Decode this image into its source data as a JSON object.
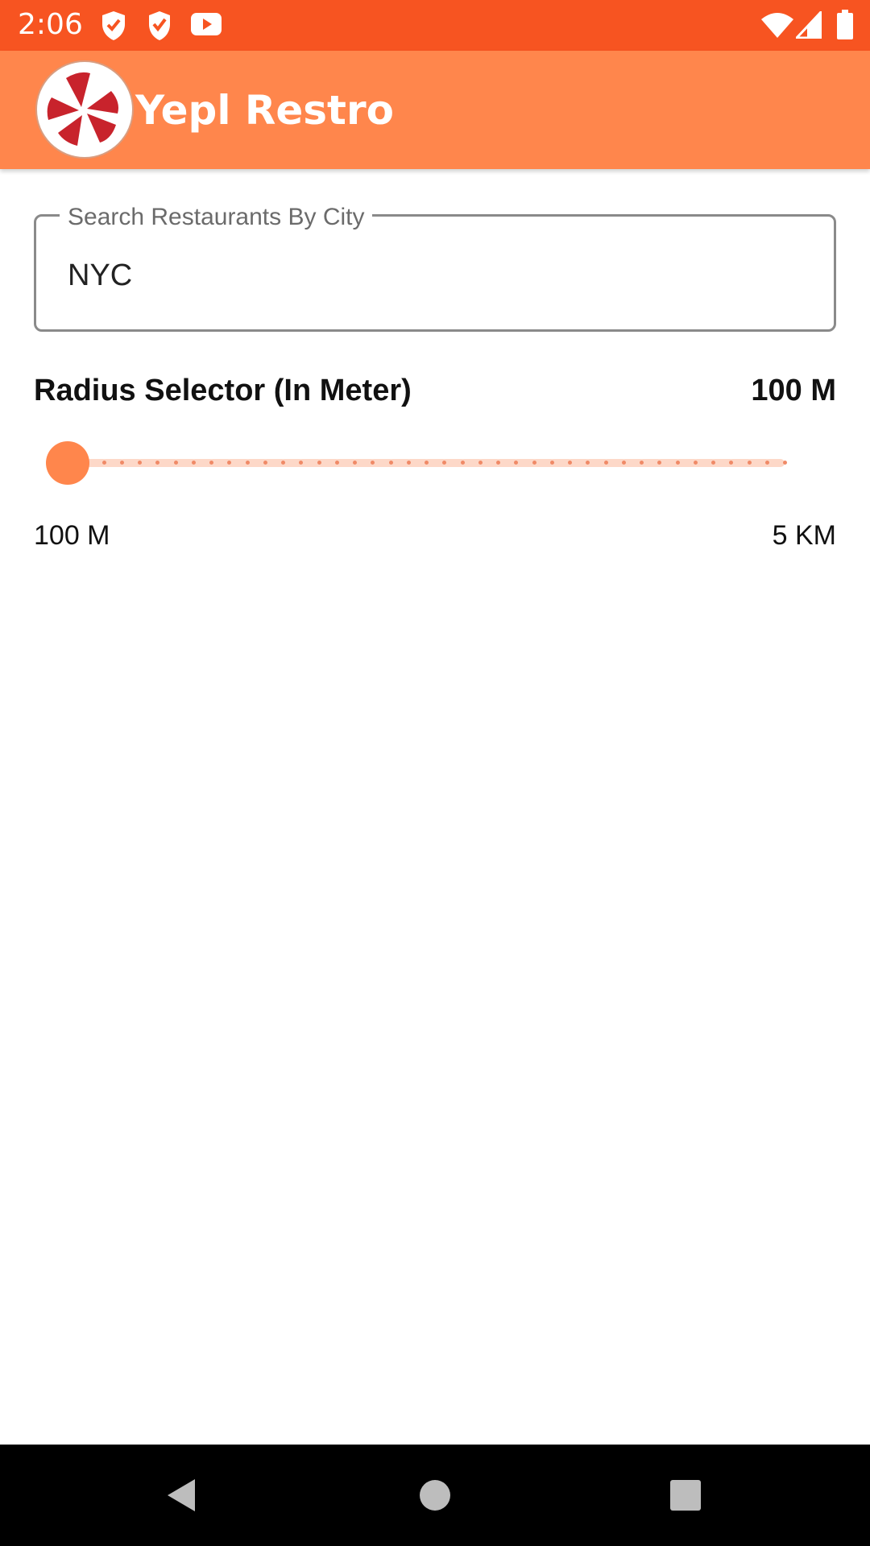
{
  "status_bar": {
    "time": "2:06",
    "left_icons": [
      "shield-check-icon",
      "shield-bolt-icon",
      "youtube-icon"
    ],
    "right_icons": [
      "wifi-icon",
      "cell-signal-icon",
      "battery-icon"
    ],
    "color": "#F75421"
  },
  "app_bar": {
    "title": "Yepl Restro",
    "logo": "yelp-logo-icon",
    "color": "#FF864C"
  },
  "search": {
    "label": "Search Restaurants By City",
    "value": "NYC"
  },
  "radius": {
    "label": "Radius Selector (In Meter)",
    "current_value": "100 M",
    "min_label": "100 M",
    "max_label": "5 KM",
    "position_fraction": 0,
    "accent": "#FF864C"
  },
  "nav_bar": {
    "buttons": [
      "back-icon",
      "home-icon",
      "recents-icon"
    ]
  }
}
